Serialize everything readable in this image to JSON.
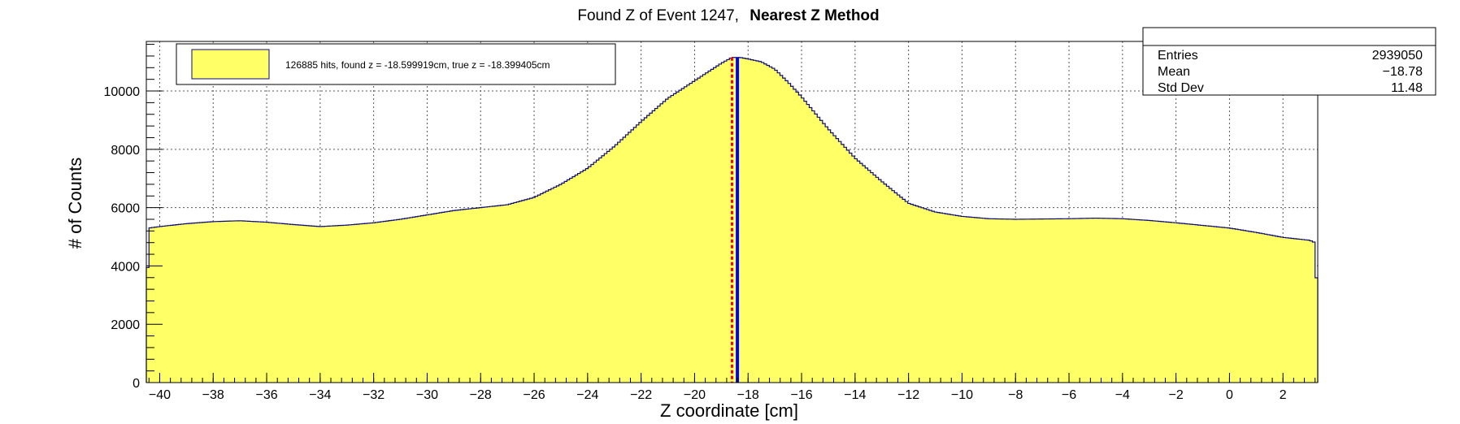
{
  "chart_data": {
    "type": "histogram",
    "title": "Found Z of Event 1247,",
    "title_method": "Nearest Z Method",
    "xlabel": "Z coordinate [cm]",
    "ylabel": "# of Counts",
    "xlim": [
      -40.5,
      3.3
    ],
    "ylim": [
      0,
      11700
    ],
    "x_ticks": [
      -40,
      -38,
      -36,
      -34,
      -32,
      -30,
      -28,
      -26,
      -24,
      -22,
      -20,
      -18,
      -16,
      -14,
      -12,
      -10,
      -8,
      -6,
      -4,
      -2,
      0,
      2
    ],
    "x_tick_labels": [
      "−40",
      "−38",
      "−36",
      "−34",
      "−32",
      "−30",
      "−28",
      "−26",
      "−24",
      "−22",
      "−20",
      "−18",
      "−16",
      "−14",
      "−12",
      "−10",
      "−8",
      "−6",
      "−4",
      "−2",
      "0",
      "2"
    ],
    "y_ticks": [
      0,
      2000,
      4000,
      6000,
      8000,
      10000
    ],
    "y_tick_labels": [
      "0",
      "2000",
      "4000",
      "6000",
      "8000",
      "10000"
    ],
    "grid": true,
    "fill_color": "#ffff66",
    "line_color": "#0b0b7a",
    "profile": {
      "x": [
        -40.5,
        -40.4,
        -40.0,
        -39.0,
        -38.0,
        -37.0,
        -36.0,
        -35.0,
        -34.0,
        -33.0,
        -32.0,
        -31.0,
        -30.0,
        -29.0,
        -28.0,
        -27.0,
        -26.0,
        -25.0,
        -24.0,
        -23.0,
        -22.0,
        -21.0,
        -20.0,
        -19.5,
        -19.0,
        -18.6,
        -18.3,
        -18.0,
        -17.5,
        -17.0,
        -16.5,
        -16.0,
        -15.0,
        -14.0,
        -13.0,
        -12.0,
        -11.0,
        -10.0,
        -9.0,
        -8.0,
        -7.0,
        -6.0,
        -5.0,
        -4.0,
        -3.0,
        -2.0,
        -1.0,
        0.0,
        1.0,
        2.0,
        3.0,
        3.2,
        3.3
      ],
      "y": [
        2600,
        5300,
        5350,
        5450,
        5520,
        5550,
        5500,
        5420,
        5350,
        5400,
        5480,
        5600,
        5750,
        5900,
        6000,
        6100,
        6350,
        6800,
        7350,
        8100,
        8950,
        9750,
        10350,
        10650,
        10950,
        11150,
        11150,
        11100,
        11000,
        10750,
        10300,
        9800,
        8700,
        7700,
        6900,
        6150,
        5850,
        5700,
        5620,
        5600,
        5610,
        5620,
        5640,
        5620,
        5560,
        5480,
        5390,
        5300,
        5150,
        4980,
        4880,
        4800,
        2400
      ]
    },
    "markers": [
      {
        "name": "found z",
        "value": -18.599919,
        "color": "#ff0000",
        "style": "dashed"
      },
      {
        "name": "true z",
        "value": -18.399405,
        "color": "#0000ff",
        "style": "solid"
      }
    ],
    "legend": {
      "label": "126885 hits, found z = -18.599919cm, true z = -18.399405cm",
      "placement": "top-left"
    },
    "stats": {
      "placement": "top-right",
      "rows": [
        {
          "label": "Entries",
          "value": "2939050"
        },
        {
          "label": "Mean",
          "value": "−18.78"
        },
        {
          "label": "Std Dev",
          "value": "11.48"
        }
      ]
    }
  }
}
